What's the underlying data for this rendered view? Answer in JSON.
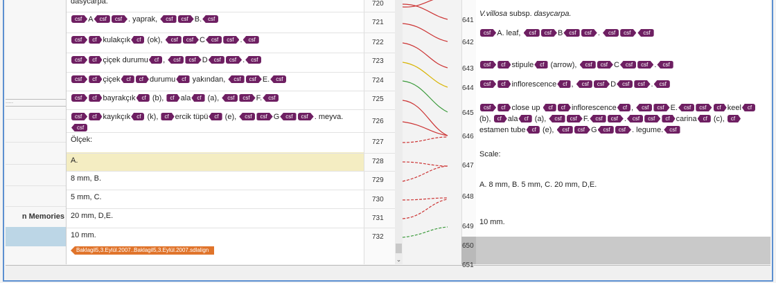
{
  "sidebar": {
    "label": "n Memories",
    "dots": "....."
  },
  "left": {
    "numbers": [
      "720",
      "721",
      "722",
      "723",
      "724",
      "725",
      "726",
      "727",
      "728",
      "729",
      "730",
      "731",
      "732"
    ],
    "segments": [
      {
        "parts": [
          {
            "text": "dasycarpa."
          }
        ]
      },
      {
        "parts": [
          {
            "open": "csf"
          },
          {
            "text": "A"
          },
          {
            "close": "csf"
          },
          {
            "open": "csf"
          },
          {
            "text": ". yaprak, "
          },
          {
            "close": "csf"
          },
          {
            "open": "csf"
          },
          {
            "text": "B."
          },
          {
            "close": "csf"
          }
        ]
      },
      {
        "parts": [
          {
            "open": "csf"
          },
          {
            "open": "cf"
          },
          {
            "text": "kulakçık"
          },
          {
            "close": "cf"
          },
          {
            "text": " (ok), "
          },
          {
            "close": "csf"
          },
          {
            "open": "csf"
          },
          {
            "text": "C"
          },
          {
            "close": "csf"
          },
          {
            "open": "csf"
          },
          {
            "text": "."
          },
          {
            "close": "csf"
          }
        ]
      },
      {
        "parts": [
          {
            "open": "csf"
          },
          {
            "open": "cf"
          },
          {
            "text": "çiçek durumu"
          },
          {
            "close": "cf"
          },
          {
            "text": ", "
          },
          {
            "close": "csf"
          },
          {
            "open": "csf"
          },
          {
            "text": "D"
          },
          {
            "close": "csf"
          },
          {
            "open": "csf"
          },
          {
            "text": "."
          },
          {
            "close": "csf"
          }
        ]
      },
      {
        "parts": [
          {
            "open": "csf"
          },
          {
            "open": "cf"
          },
          {
            "text": "çiçek"
          },
          {
            "close": "cf"
          },
          {
            "open": "cf"
          },
          {
            "text": "durumu"
          },
          {
            "close": "cf"
          },
          {
            "text": " yakından, "
          },
          {
            "close": "csf"
          },
          {
            "open": "csf"
          },
          {
            "text": "E."
          },
          {
            "close": "csf"
          }
        ]
      },
      {
        "parts": [
          {
            "open": "csf"
          },
          {
            "open": "cf"
          },
          {
            "text": "bayrakçık"
          },
          {
            "close": "cf"
          },
          {
            "text": " (b), "
          },
          {
            "open": "cf"
          },
          {
            "text": "ala"
          },
          {
            "close": "cf"
          },
          {
            "text": " (a), "
          },
          {
            "close": "csf"
          },
          {
            "open": "csf"
          },
          {
            "text": "F."
          },
          {
            "close": "csf"
          }
        ]
      },
      {
        "parts": [
          {
            "open": "csf"
          },
          {
            "open": "cf"
          },
          {
            "text": "kayıkçık"
          },
          {
            "close": "cf"
          },
          {
            "text": " (k), "
          },
          {
            "open": "cf"
          },
          {
            "text": "ercik tüpü"
          },
          {
            "close": "cf"
          },
          {
            "text": " (e), "
          },
          {
            "close": "csf"
          },
          {
            "open": "csf"
          },
          {
            "text": "G"
          },
          {
            "close": "csf"
          },
          {
            "open": "csf"
          },
          {
            "text": ". meyva."
          },
          {
            "close": "csf"
          }
        ]
      },
      {
        "parts": [
          {
            "text": "Ölçek:"
          }
        ]
      },
      {
        "parts": [
          {
            "text": "A."
          }
        ]
      },
      {
        "parts": [
          {
            "text": "8 mm, B."
          }
        ]
      },
      {
        "parts": [
          {
            "text": "5 mm, C."
          }
        ]
      },
      {
        "parts": [
          {
            "text": "20 mm, D,E."
          }
        ]
      },
      {
        "parts": [
          {
            "text": "10 mm."
          }
        ]
      }
    ],
    "file_tag": "Baklagil5,3.Eylül.2007..Baklagil5,3.Eylül.2007.sdlalign"
  },
  "right": {
    "numbers": [
      "641",
      "642",
      "643",
      "644",
      "645",
      "646",
      "647",
      "648",
      "649",
      "650",
      "651"
    ],
    "segments": [
      {
        "parts": [
          {
            "italic": "V.villosa"
          },
          {
            "text": " subsp. "
          },
          {
            "italic": "dasycarpa."
          }
        ]
      },
      {
        "parts": [
          {
            "open": "csf"
          },
          {
            "text": "A. leaf, "
          },
          {
            "close": "csf"
          },
          {
            "open": "csf"
          },
          {
            "text": "B"
          },
          {
            "close": "csf"
          },
          {
            "open": "csf"
          },
          {
            "text": ". "
          },
          {
            "close": "csf"
          },
          {
            "open": "csf"
          },
          {
            "close": "csf"
          }
        ]
      },
      {
        "parts": [
          {
            "open": "csf"
          },
          {
            "open": "cf"
          },
          {
            "text": "stipule"
          },
          {
            "close": "cf"
          },
          {
            "text": " (arrow), "
          },
          {
            "close": "csf"
          },
          {
            "open": "csf"
          },
          {
            "text": "C"
          },
          {
            "close": "csf"
          },
          {
            "open": "csf"
          },
          {
            "text": "."
          },
          {
            "close": "csf"
          }
        ]
      },
      {
        "parts": [
          {
            "open": "csf"
          },
          {
            "open": "cf"
          },
          {
            "text": "inflorescence"
          },
          {
            "close": "cf"
          },
          {
            "text": ", "
          },
          {
            "close": "csf"
          },
          {
            "open": "csf"
          },
          {
            "text": "D"
          },
          {
            "close": "csf"
          },
          {
            "open": "csf"
          },
          {
            "text": "."
          },
          {
            "close": "csf"
          }
        ]
      },
      {
        "parts": [
          {
            "open": "csf"
          },
          {
            "open": "cf"
          },
          {
            "text": "close up "
          },
          {
            "close": "cf"
          },
          {
            "open": "cf"
          },
          {
            "text": "inflorescence"
          },
          {
            "close": "cf"
          },
          {
            "text": ", "
          },
          {
            "close": "csf"
          },
          {
            "open": "csf"
          },
          {
            "text": "E."
          },
          {
            "close": "csf"
          },
          {
            "open": "csf"
          },
          {
            "open": "cf"
          },
          {
            "text": "keel"
          },
          {
            "close": "cf"
          },
          {
            "text": " (b), "
          },
          {
            "open": "cf"
          },
          {
            "text": "ala"
          },
          {
            "close": "cf"
          },
          {
            "text": " (a), "
          },
          {
            "close": "csf"
          },
          {
            "open": "csf"
          },
          {
            "text": "F."
          },
          {
            "close": "csf"
          },
          {
            "open": "csf"
          },
          {
            "text": "."
          },
          {
            "close": "csf"
          },
          {
            "open": "csf"
          },
          {
            "open": "cf"
          },
          {
            "text": "carina"
          },
          {
            "close": "cf"
          },
          {
            "text": " (c), "
          },
          {
            "open": "cf"
          },
          {
            "text": "estamen tube"
          },
          {
            "close": "cf"
          },
          {
            "text": " (e), "
          },
          {
            "close": "csf"
          },
          {
            "open": "csf"
          },
          {
            "text": "G"
          },
          {
            "close": "csf"
          },
          {
            "open": "csf"
          },
          {
            "text": ". legume."
          },
          {
            "close": "csf"
          }
        ]
      },
      {
        "parts": [
          {
            "text": "Scale:"
          }
        ]
      },
      {
        "parts": [
          {
            "text": "A. 8 mm, B.  5 mm, C. 20 mm, D,E."
          }
        ]
      },
      {
        "parts": [
          {
            "text": "10 mm."
          }
        ]
      }
    ]
  }
}
